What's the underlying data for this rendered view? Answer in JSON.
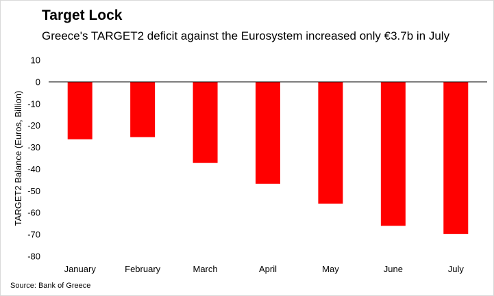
{
  "title": "Target Lock",
  "subtitle": "Greece's TARGET2 deficit against the Eurosystem increased only €3.7b in July",
  "source": "Source: Bank of Greece",
  "chart_data": {
    "type": "bar",
    "categories": [
      "January",
      "February",
      "March",
      "April",
      "May",
      "June",
      "July"
    ],
    "values": [
      -26.3,
      -25.3,
      -37.1,
      -46.7,
      -55.8,
      -66.0,
      -69.7
    ],
    "ylabel": "TARGET2 Balance (Euros, Billion)",
    "xlabel": "",
    "ylim": [
      -80,
      10
    ],
    "yticks": [
      10,
      0,
      -10,
      -20,
      -30,
      -40,
      -50,
      -60,
      -70,
      -80
    ],
    "bar_color": "#ff0000",
    "axis_color": "#000000",
    "grid": false,
    "legend": "none"
  }
}
